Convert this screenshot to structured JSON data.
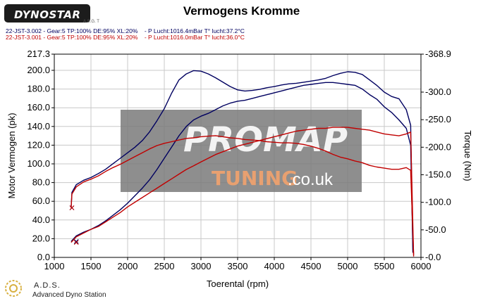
{
  "header": {
    "logo_text": "DYNOSTAR",
    "logo_subtext": "A.S.G. T",
    "title": "Vermogens Kromme",
    "run1_info": "22-JST-3.002 - Gear:5 TP:100% DE:95% XL:20%    - P Lucht:1016.4mBar T° lucht:37.2°C",
    "run2_info": "22-JST-3.001 - Gear:5 TP:100% DE:95% XL:20%    - P Lucht:1016.0mBar T° lucht:36.0°C"
  },
  "watermark": {
    "text_main": "PROMAP",
    "text_tuning": "TUNING",
    "text_domain": ".co.uk"
  },
  "footer": {
    "ads_name": "A.D.S.",
    "ads_full": "Advanced Dyno Station"
  },
  "colors": {
    "run1": "#000060",
    "run2": "#c00000",
    "grid": "#c8c8c8",
    "watermark_bg": "#7a7a7a",
    "watermark_accent": "#e8a070"
  },
  "chart_data": {
    "type": "line",
    "title": "Vermogens Kromme",
    "xlabel": "Toerental (rpm)",
    "ylabel_left": "Motor Vermogen (pk)",
    "ylabel_right": "Torque (Nm)",
    "xlim": [
      1000,
      6000
    ],
    "ylim_left": [
      0,
      217.3
    ],
    "ylim_right": [
      0,
      368.9
    ],
    "x_ticks": [
      1000,
      1500,
      2000,
      2500,
      3000,
      3500,
      4000,
      4500,
      5000,
      5500,
      6000
    ],
    "x_tick_labels": [
      "1000",
      "1500",
      "2000",
      "2500",
      "3000",
      "3500",
      "4000",
      "4500",
      "5000",
      "5500",
      "6000"
    ],
    "y_left_ticks": [
      0,
      20,
      40,
      60,
      80,
      100,
      120,
      140,
      160,
      180,
      200,
      217.3
    ],
    "y_left_tick_labels": [
      "0.0",
      "20.0",
      "40.0",
      "60.0",
      "80.0",
      "100.0",
      "120.0",
      "140.0",
      "160.0",
      "180.0",
      "200.0",
      "217.3"
    ],
    "y_right_ticks": [
      0,
      50,
      100,
      150,
      200,
      250,
      300,
      368.9
    ],
    "y_right_tick_labels": [
      "0.0",
      "50.0",
      "100.0",
      "150.0",
      "200.0",
      "250.0",
      "300.0",
      "368.9"
    ],
    "grid": true,
    "series": [
      {
        "name": "22-JST-3.002 Vermogen",
        "axis": "left",
        "color": "#000060",
        "x": [
          1230,
          1300,
          1400,
          1500,
          1600,
          1700,
          1800,
          1900,
          2000,
          2100,
          2200,
          2300,
          2400,
          2500,
          2600,
          2700,
          2800,
          2900,
          3000,
          3100,
          3200,
          3300,
          3400,
          3500,
          3600,
          3700,
          3800,
          3900,
          4000,
          4100,
          4200,
          4300,
          4400,
          4500,
          4600,
          4700,
          4800,
          4900,
          5000,
          5100,
          5200,
          5300,
          5400,
          5500,
          5600,
          5700,
          5800,
          5860,
          5890
        ],
        "y": [
          17,
          23,
          27,
          30,
          34,
          39,
          45,
          51,
          58,
          66,
          74,
          83,
          94,
          106,
          118,
          130,
          140,
          147,
          151,
          154,
          158,
          162,
          165,
          167,
          168,
          170,
          172,
          174,
          176,
          178,
          180,
          182,
          184,
          185,
          186,
          187,
          187,
          186,
          185,
          184,
          180,
          174,
          169,
          161,
          155,
          147,
          138,
          120,
          5
        ]
      },
      {
        "name": "22-JST-3.002 Torque",
        "axis": "right",
        "color": "#000060",
        "x": [
          1230,
          1240,
          1300,
          1400,
          1500,
          1600,
          1700,
          1800,
          1900,
          2000,
          2100,
          2200,
          2300,
          2400,
          2500,
          2600,
          2700,
          2800,
          2900,
          3000,
          3100,
          3200,
          3300,
          3400,
          3500,
          3600,
          3700,
          3800,
          3900,
          4000,
          4100,
          4200,
          4300,
          4400,
          4500,
          4600,
          4700,
          4800,
          4900,
          5000,
          5100,
          5200,
          5300,
          5400,
          5500,
          5600,
          5700,
          5800,
          5860,
          5890
        ],
        "y": [
          90,
          118,
          132,
          140,
          145,
          152,
          160,
          170,
          180,
          190,
          200,
          212,
          228,
          248,
          270,
          298,
          322,
          333,
          339,
          338,
          333,
          326,
          318,
          310,
          304,
          302,
          303,
          305,
          308,
          310,
          313,
          315,
          316,
          318,
          320,
          322,
          325,
          330,
          334,
          337,
          336,
          332,
          322,
          312,
          300,
          292,
          288,
          268,
          240,
          10
        ]
      },
      {
        "name": "22-JST-3.001 Vermogen",
        "axis": "left",
        "color": "#c00000",
        "x": [
          1230,
          1300,
          1400,
          1500,
          1600,
          1700,
          1800,
          1900,
          2000,
          2100,
          2200,
          2300,
          2400,
          2500,
          2600,
          2700,
          2800,
          2900,
          3000,
          3100,
          3200,
          3300,
          3400,
          3500,
          3600,
          3700,
          3800,
          3900,
          4000,
          4100,
          4200,
          4300,
          4400,
          4500,
          4600,
          4700,
          4800,
          4900,
          5000,
          5100,
          5200,
          5300,
          5400,
          5500,
          5600,
          5700,
          5800,
          5860,
          5900
        ],
        "y": [
          16,
          22,
          26,
          30,
          33,
          38,
          43,
          48,
          54,
          59,
          64,
          69,
          74,
          79,
          84,
          89,
          94,
          98,
          102,
          106,
          110,
          113,
          116,
          119,
          121,
          123,
          125,
          127,
          129,
          131,
          133,
          135,
          136,
          137,
          138,
          138,
          139,
          139,
          139,
          138,
          137,
          136,
          134,
          132,
          131,
          130,
          132,
          134,
          1
        ]
      },
      {
        "name": "22-JST-3.001 Torque",
        "axis": "right",
        "color": "#c00000",
        "x": [
          1230,
          1240,
          1300,
          1400,
          1500,
          1600,
          1700,
          1800,
          1900,
          2000,
          2100,
          2200,
          2300,
          2400,
          2500,
          2600,
          2700,
          2800,
          2900,
          3000,
          3100,
          3200,
          3300,
          3400,
          3500,
          3600,
          3700,
          3800,
          3900,
          4000,
          4100,
          4200,
          4300,
          4400,
          4500,
          4600,
          4700,
          4800,
          4900,
          5000,
          5100,
          5200,
          5300,
          5400,
          5500,
          5600,
          5700,
          5800,
          5860,
          5900
        ],
        "y": [
          90,
          115,
          128,
          137,
          142,
          148,
          156,
          163,
          169,
          176,
          183,
          190,
          197,
          203,
          207,
          210,
          213,
          216,
          217,
          219,
          220,
          221,
          219,
          217,
          216,
          214,
          213,
          212,
          210,
          209,
          208,
          208,
          207,
          205,
          202,
          198,
          193,
          187,
          182,
          179,
          175,
          172,
          167,
          164,
          162,
          160,
          160,
          163,
          158,
          5
        ]
      }
    ]
  }
}
